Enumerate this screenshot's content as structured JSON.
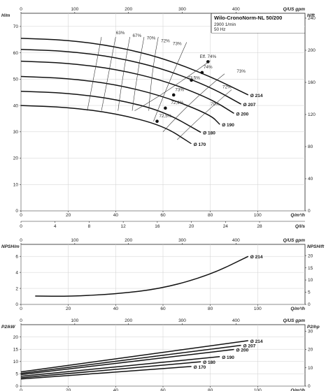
{
  "chart_data": [
    {
      "type": "line",
      "title": "Wilo-CronoNorm-NL 50/200",
      "info_lines": [
        "2900 1/min",
        "50 Hz"
      ],
      "ylabel_left": "H/m",
      "ylabel_right": "H/ft",
      "xlabel_top": "Q/US gpm",
      "xlabel_bottom": "Q/m³/h",
      "xlabel_ls": "Q/l/s",
      "x_range": [
        0,
        120
      ],
      "y_range": [
        0,
        75
      ],
      "x_ticks": [
        0,
        20,
        40,
        60,
        80,
        100
      ],
      "y_ticks": [
        0,
        10,
        20,
        30,
        40,
        50,
        60,
        70
      ],
      "gpm_ticks": [
        0,
        100,
        200,
        300,
        400
      ],
      "ft_ticks": [
        0,
        40,
        80,
        120,
        160,
        200,
        240
      ],
      "ls_ticks": [
        0,
        4,
        8,
        12,
        16,
        20,
        24,
        28
      ],
      "series": [
        {
          "name": "Ø 214",
          "x": [
            0,
            20,
            40,
            60,
            80,
            96
          ],
          "y": [
            65.5,
            64.8,
            62.4,
            58.0,
            51.0,
            44.0
          ],
          "bep": [
            79,
            56.6
          ]
        },
        {
          "name": "Ø 207",
          "x": [
            0,
            20,
            40,
            60,
            80,
            93
          ],
          "y": [
            61.3,
            60.6,
            58.3,
            54.0,
            47.0,
            40.5
          ],
          "bep": [
            76.5,
            52.5
          ]
        },
        {
          "name": "Ø 200",
          "x": [
            0,
            20,
            40,
            60,
            80,
            90
          ],
          "y": [
            56.8,
            56.1,
            53.8,
            49.6,
            42.6,
            37.0
          ],
          "bep": [
            72,
            49.6
          ]
        },
        {
          "name": "Ø 190",
          "x": [
            0,
            20,
            40,
            60,
            80,
            84
          ],
          "y": [
            51.0,
            50.3,
            48.0,
            43.6,
            36.5,
            32.8
          ],
          "bep": [
            64.5,
            44
          ]
        },
        {
          "name": "Ø 180",
          "x": [
            0,
            20,
            40,
            60,
            76
          ],
          "y": [
            45.4,
            44.7,
            42.4,
            37.9,
            29.8
          ],
          "bep": [
            61,
            39
          ]
        },
        {
          "name": "Ø 170",
          "x": [
            0,
            20,
            40,
            60,
            72
          ],
          "y": [
            40.0,
            39.3,
            37.0,
            32.4,
            25.5
          ],
          "bep": [
            57.5,
            34
          ]
        }
      ],
      "efficiency_labels": [
        "63%",
        "67%",
        "70%",
        "72%",
        "73%",
        "Eff. 74%",
        "74%",
        "73%",
        "73,5%",
        "72%",
        "73%",
        "72,9%",
        "70%",
        "72,5%"
      ]
    },
    {
      "type": "line",
      "ylabel_left": "NPSH/m",
      "ylabel_right": "NPSH/ft",
      "xlabel_top": "Q/US gpm",
      "xlabel_bottom": "Q/m³/h",
      "x_range": [
        0,
        120
      ],
      "y_range": [
        0,
        7.5
      ],
      "x_ticks": [
        0,
        20,
        40,
        60,
        80,
        100
      ],
      "y_ticks": [
        0,
        2,
        4,
        6
      ],
      "gpm_ticks": [
        0,
        100,
        200,
        300,
        400
      ],
      "ft_ticks": [
        0,
        5,
        10,
        15,
        20
      ],
      "series": [
        {
          "name": "Ø 214",
          "x": [
            6,
            20,
            40,
            60,
            80,
            96
          ],
          "y": [
            1.05,
            1.0,
            1.3,
            2.0,
            3.7,
            6.0
          ]
        }
      ]
    },
    {
      "type": "line",
      "ylabel_left": "P2/kW",
      "ylabel_right": "P2/hp",
      "xlabel_top": "Q/US gpm",
      "xlabel_bottom": "Q/m³/h",
      "x_range": [
        0,
        120
      ],
      "y_range": [
        0,
        25
      ],
      "x_ticks": [
        0,
        20,
        40,
        60,
        80,
        100
      ],
      "y_ticks": [
        0,
        5,
        10,
        15,
        20
      ],
      "gpm_ticks": [
        0,
        100,
        200,
        300,
        400
      ],
      "hp_ticks": [
        0,
        10,
        20,
        30
      ],
      "series": [
        {
          "name": "Ø 214",
          "x": [
            0,
            96
          ],
          "y": [
            5.8,
            18.5
          ]
        },
        {
          "name": "Ø 207",
          "x": [
            0,
            93
          ],
          "y": [
            5.2,
            16.6
          ]
        },
        {
          "name": "Ø 200",
          "x": [
            0,
            90
          ],
          "y": [
            4.7,
            14.9
          ]
        },
        {
          "name": "Ø 190",
          "x": [
            0,
            84
          ],
          "y": [
            4.0,
            12.0
          ]
        },
        {
          "name": "Ø 180",
          "x": [
            0,
            76
          ],
          "y": [
            3.4,
            9.9
          ]
        },
        {
          "name": "Ø 170",
          "x": [
            0,
            72
          ],
          "y": [
            2.9,
            8.0
          ]
        }
      ]
    }
  ]
}
